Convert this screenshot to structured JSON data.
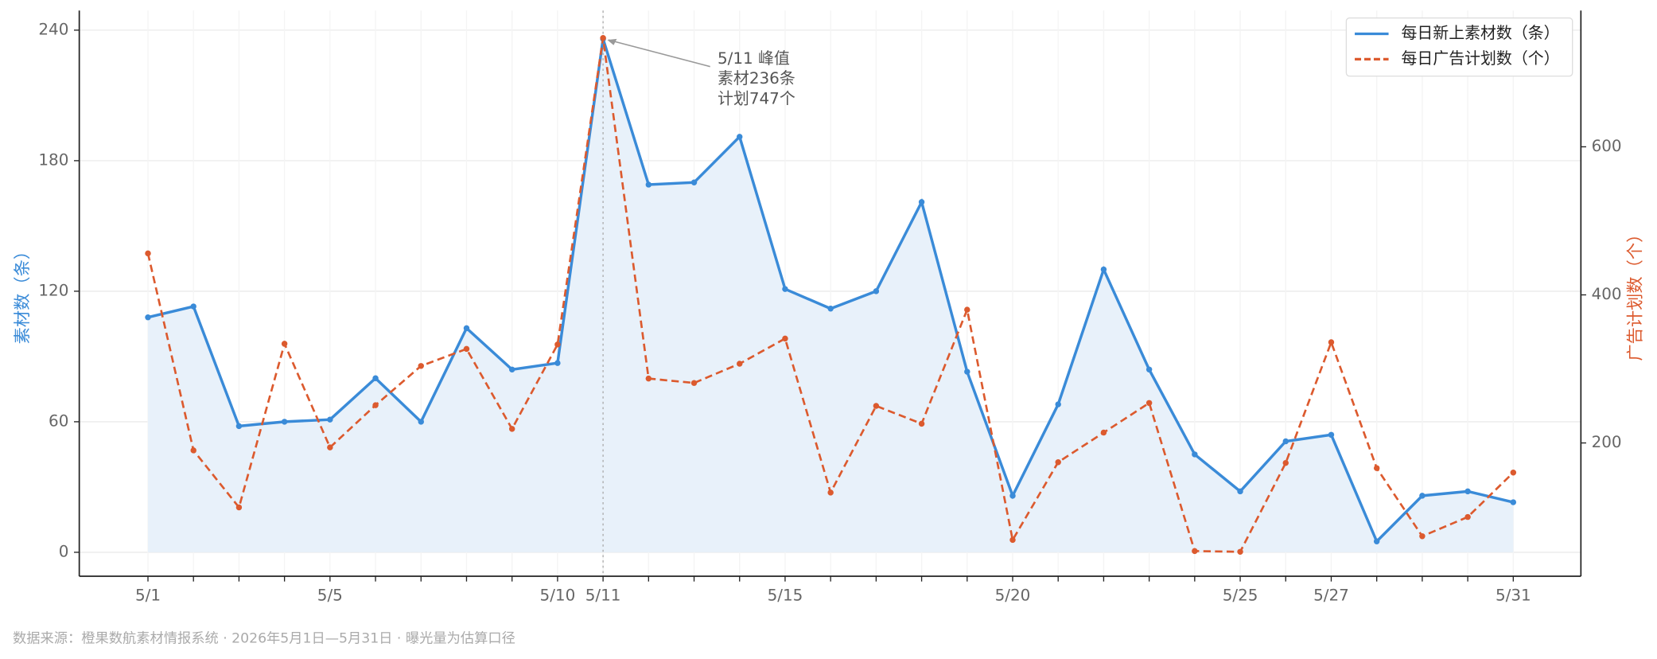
{
  "chart_data": {
    "type": "line",
    "categories": [
      "5/1",
      null,
      null,
      null,
      "5/5",
      null,
      null,
      null,
      null,
      "5/10",
      "5/11",
      null,
      null,
      null,
      "5/15",
      null,
      null,
      null,
      null,
      "5/20",
      null,
      null,
      null,
      null,
      "5/25",
      null,
      "5/27",
      null,
      null,
      null,
      "5/31"
    ],
    "series": [
      {
        "name": "每日新上素材数（条）",
        "color": "#3a8bd8",
        "style": "solid",
        "fill": "#e8f1fa",
        "axis": "y",
        "values": [
          108,
          113,
          58,
          60,
          61,
          80,
          60,
          103,
          84,
          87,
          236,
          169,
          170,
          191,
          121,
          112,
          120,
          161,
          83,
          26,
          68,
          130,
          84,
          45,
          28,
          51,
          54,
          5,
          26,
          28,
          23
        ]
      },
      {
        "name": "每日广告计划数（个）",
        "color": "#dc5a2e",
        "style": "dashed",
        "axis": "y2",
        "values": [
          456,
          190,
          113,
          334,
          194,
          251,
          304,
          327,
          219,
          333,
          747,
          287,
          281,
          307,
          341,
          133,
          250,
          226,
          380,
          69,
          174,
          214,
          254,
          54,
          53,
          173,
          336,
          166,
          74,
          100,
          160
        ]
      }
    ],
    "ylabel": "素材数（条）",
    "y2label": "广告计划数（个）",
    "ylim": [
      -11,
      249
    ],
    "yticks": [
      0,
      60,
      120,
      180,
      240
    ],
    "y2lim": [
      20,
      784
    ],
    "y2ticks": [
      200,
      400,
      600
    ],
    "grid": true,
    "legend": "upper right",
    "annotation": [
      "5/11 峰值",
      "素材236条",
      "计划747个"
    ],
    "footnote": "数据来源：橙果数航素材情报系统 · 2026年5月1日—5月31日 · 曝光量为估算口径"
  }
}
